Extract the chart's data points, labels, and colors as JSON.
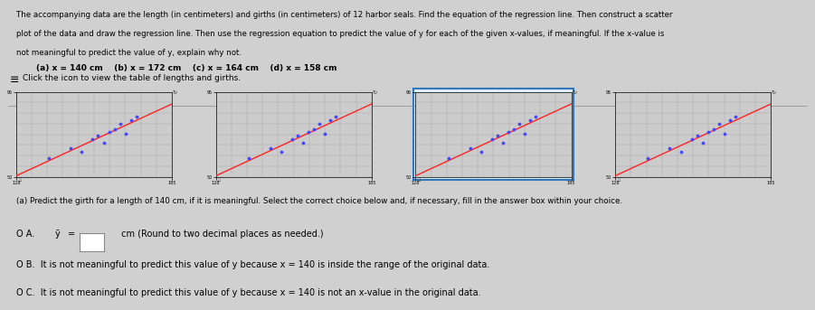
{
  "title_text": "The accompanying data are the length (in centimeters) and girths (in centimeters) of 12 harbor seals. Find the equation of the regression line. Then construct a scatter\nplot of the data and draw the regression line. Then use the regression equation to predict the value of y for each of the given x-values, if meaningful. If the x-value is\nnot meaningful to predict the value of y, explain why not.",
  "sub_labels": [
    "(a) x = 140 cm",
    "(b) x = 172 cm",
    "(c) x = 164 cm",
    "(d) x = 158 cm"
  ],
  "click_text": "Click the icon to view the table of lengths and girths.",
  "num_plots": 4,
  "question_text": "(a) Predict the girth for a length of 140 cm, if it is meaningful. Select the correct choice below and, if necessary, fill in the answer box within your choice.",
  "bg_color": "#d0d0d0",
  "plot_bg": "#c8c8c8",
  "text_color": "#000000",
  "scatter_color": "#4444ff",
  "line_color": "#ff2222",
  "highlighted_plot_index": 2,
  "lengths": [
    140,
    148,
    152,
    156,
    158,
    160,
    162,
    164,
    166,
    168,
    170,
    172
  ],
  "girths": [
    60,
    65,
    63,
    70,
    72,
    68,
    74,
    75,
    78,
    73,
    80,
    82
  ],
  "x_min": 128,
  "x_max": 185,
  "y_min": 50,
  "y_max": 95
}
